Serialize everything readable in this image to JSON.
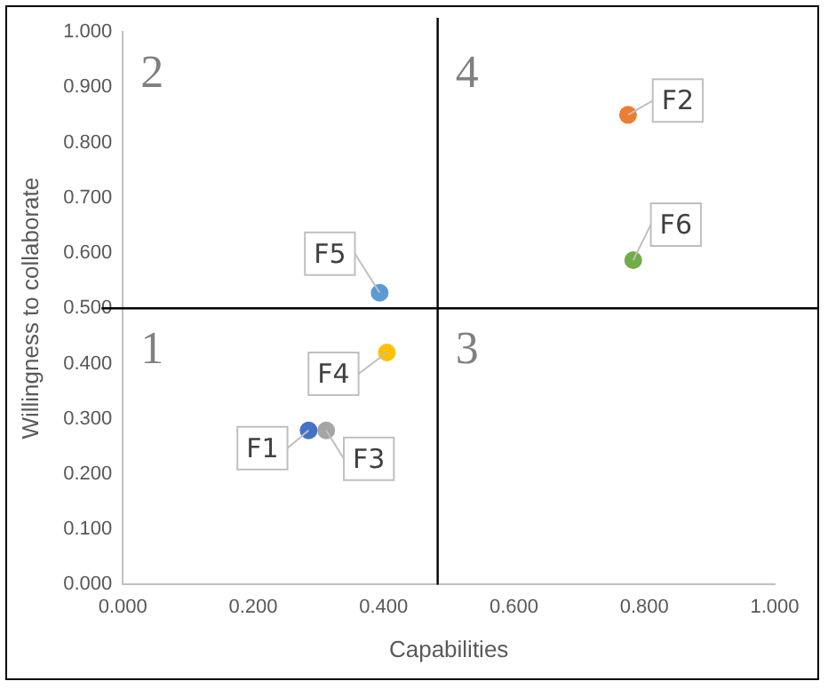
{
  "chart_data": {
    "type": "scatter",
    "xlabel": "Capabilities",
    "ylabel": "Willingness to collaborate",
    "series": [
      {
        "name": "F1",
        "color": "#4472c4",
        "x": [
          0.285
        ],
        "values": [
          0.279
        ]
      },
      {
        "name": "F2",
        "color": "#ed7d31",
        "x": [
          0.775
        ],
        "values": [
          0.85
        ]
      },
      {
        "name": "F3",
        "color": "#a5a5a5",
        "x": [
          0.312
        ],
        "values": [
          0.279
        ]
      },
      {
        "name": "F4",
        "color": "#ffc000",
        "x": [
          0.405
        ],
        "values": [
          0.42
        ]
      },
      {
        "name": "F5",
        "color": "#5b9bd5",
        "x": [
          0.394
        ],
        "values": [
          0.528
        ]
      },
      {
        "name": "F6",
        "color": "#70ad47",
        "x": [
          0.783
        ],
        "values": [
          0.587
        ]
      }
    ],
    "xlim": [
      0,
      1
    ],
    "ylim": [
      0,
      1
    ],
    "xticks": [
      {
        "value": 0,
        "label": "0.000"
      },
      {
        "value": 0.2,
        "label": "0.200"
      },
      {
        "value": 0.4,
        "label": "0.400"
      },
      {
        "value": 0.6,
        "label": "0.600"
      },
      {
        "value": 0.8,
        "label": "0.800"
      },
      {
        "value": 1,
        "label": "1.000"
      }
    ],
    "yticks": [
      {
        "value": 0,
        "label": "0.000"
      },
      {
        "value": 0.1,
        "label": "0.100"
      },
      {
        "value": 0.2,
        "label": "0.200"
      },
      {
        "value": 0.3,
        "label": "0.300"
      },
      {
        "value": 0.4,
        "label": "0.400"
      },
      {
        "value": 0.5,
        "label": "0.500"
      },
      {
        "value": 0.6,
        "label": "0.600"
      },
      {
        "value": 0.7,
        "label": "0.700"
      },
      {
        "value": 0.8,
        "label": "0.800"
      },
      {
        "value": 0.9,
        "label": "0.900"
      },
      {
        "value": 1,
        "label": "1.000"
      }
    ],
    "ref_lines": [
      {
        "axis": "x",
        "value": 0.483,
        "color": "#000000"
      },
      {
        "axis": "y",
        "value": 0.5,
        "color": "#000000"
      }
    ],
    "annotations": [
      "2",
      "4",
      "1",
      "3"
    ],
    "grid": false,
    "legend": false,
    "marker": "circle"
  }
}
